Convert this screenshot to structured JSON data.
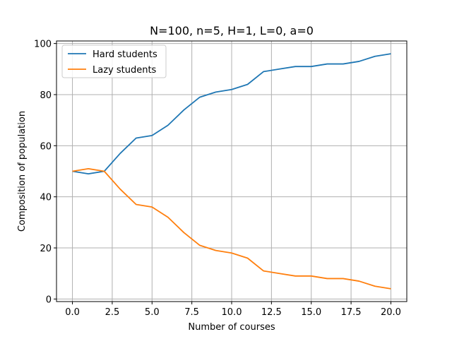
{
  "chart_data": {
    "type": "line",
    "title": "N=100, n=5, H=1, L=0, a=0",
    "xlabel": "Number of courses",
    "ylabel": "Composition of population",
    "xlim": [
      -1,
      21
    ],
    "ylim": [
      -1,
      101
    ],
    "xticks": [
      0.0,
      2.5,
      5.0,
      7.5,
      10.0,
      12.5,
      15.0,
      17.5,
      20.0
    ],
    "xtick_labels": [
      "0.0",
      "2.5",
      "5.0",
      "7.5",
      "10.0",
      "12.5",
      "15.0",
      "17.5",
      "20.0"
    ],
    "yticks": [
      0,
      20,
      40,
      60,
      80,
      100
    ],
    "ytick_labels": [
      "0",
      "20",
      "40",
      "60",
      "80",
      "100"
    ],
    "grid": true,
    "legend_position": "top-left",
    "x": [
      0,
      1,
      2,
      3,
      4,
      5,
      6,
      7,
      8,
      9,
      10,
      11,
      12,
      13,
      14,
      15,
      16,
      17,
      18,
      19,
      20
    ],
    "series": [
      {
        "name": "Hard students",
        "color": "#1f77b4",
        "values": [
          50,
          49,
          50,
          57,
          63,
          64,
          68,
          74,
          79,
          81,
          82,
          84,
          89,
          90,
          91,
          91,
          92,
          92,
          93,
          95,
          96
        ]
      },
      {
        "name": "Lazy students",
        "color": "#ff7f0e",
        "values": [
          50,
          51,
          50,
          43,
          37,
          36,
          32,
          26,
          21,
          19,
          18,
          16,
          11,
          10,
          9,
          9,
          8,
          8,
          7,
          5,
          4
        ]
      }
    ]
  }
}
